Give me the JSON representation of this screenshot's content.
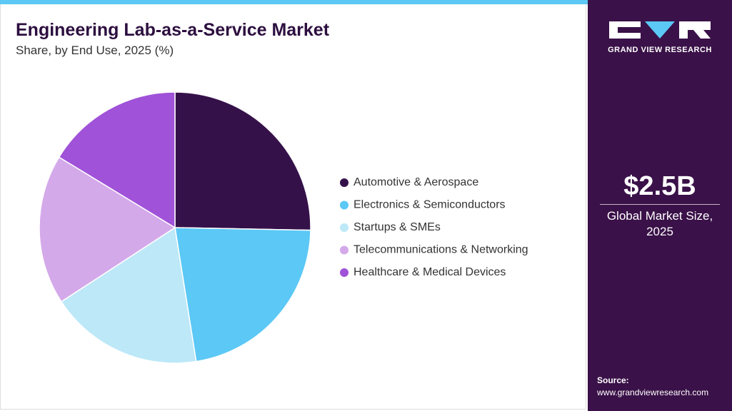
{
  "chart_data": {
    "type": "pie",
    "title": "Engineering Lab-as-a-Service Market",
    "subtitle": "Share, by End Use, 2025 (%)",
    "categories": [
      "Automotive & Aerospace",
      "Electronics & Semiconductors",
      "Startups & SMEs",
      "Telecommunications & Networking",
      "Healthcare & Medical Devices"
    ],
    "values": [
      25.3,
      22.2,
      18.3,
      17.9,
      16.3
    ],
    "colors": [
      "#35114a",
      "#5bc8f5",
      "#bde8f8",
      "#d4a9ea",
      "#a052d8"
    ]
  },
  "sidebar": {
    "brand": "GRAND VIEW RESEARCH",
    "market_size": "$2.5B",
    "market_size_label": "Global Market Size, 2025",
    "source_label": "Source:",
    "source_url": "www.grandviewresearch.com"
  }
}
